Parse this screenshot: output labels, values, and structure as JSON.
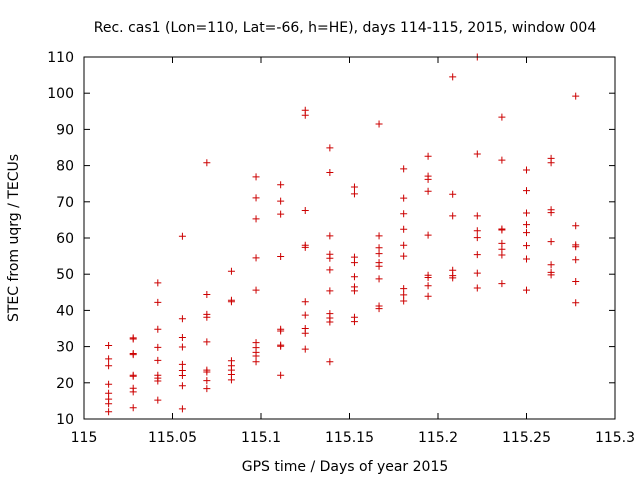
{
  "chart_data": {
    "type": "scatter",
    "title": "Rec. cas1 (Lon=110, Lat=-66, h=HE), days 114-115, 2015, window 004",
    "xlabel": "GPS time / Days of year 2015",
    "ylabel": "STEC from uqrg / TECUs",
    "xlim": [
      115,
      115.3
    ],
    "ylim": [
      10,
      110
    ],
    "xticks": [
      115,
      115.05,
      115.1,
      115.15,
      115.2,
      115.25,
      115.3
    ],
    "xtick_labels": [
      "115",
      "115.05",
      "115.1",
      "115.15",
      "115.2",
      "115.25",
      "115.3"
    ],
    "yticks": [
      10,
      20,
      30,
      40,
      50,
      60,
      70,
      80,
      90,
      100,
      110
    ],
    "ytick_labels": [
      "10",
      "20",
      "30",
      "40",
      "50",
      "60",
      "70",
      "80",
      "90",
      "100",
      "110"
    ],
    "grid": false,
    "legend": "none",
    "marker": "+",
    "color": "#cc0000",
    "points": [
      [
        115.0139,
        30.3
      ],
      [
        115.0139,
        26.6
      ],
      [
        115.0139,
        24.7
      ],
      [
        115.0139,
        19.6
      ],
      [
        115.0139,
        17.1
      ],
      [
        115.0139,
        15.5
      ],
      [
        115.0139,
        14.2
      ],
      [
        115.0139,
        12.0
      ],
      [
        115.0278,
        32.4
      ],
      [
        115.0278,
        32.1
      ],
      [
        115.0278,
        28.1
      ],
      [
        115.0278,
        27.8
      ],
      [
        115.0278,
        22.1
      ],
      [
        115.0278,
        21.8
      ],
      [
        115.0278,
        18.5
      ],
      [
        115.0278,
        17.5
      ],
      [
        115.0278,
        13.1
      ],
      [
        115.0417,
        47.6
      ],
      [
        115.0417,
        42.2
      ],
      [
        115.0417,
        34.8
      ],
      [
        115.0417,
        29.8
      ],
      [
        115.0417,
        26.2
      ],
      [
        115.0417,
        22.1
      ],
      [
        115.0417,
        21.3
      ],
      [
        115.0417,
        20.5
      ],
      [
        115.0417,
        15.2
      ],
      [
        115.0556,
        60.5
      ],
      [
        115.0556,
        37.7
      ],
      [
        115.0556,
        32.5
      ],
      [
        115.0556,
        29.9
      ],
      [
        115.0556,
        25.1
      ],
      [
        115.0556,
        23.4
      ],
      [
        115.0556,
        22.0
      ],
      [
        115.0556,
        19.2
      ],
      [
        115.0556,
        12.8
      ],
      [
        115.0694,
        80.8
      ],
      [
        115.0694,
        44.4
      ],
      [
        115.0694,
        38.9
      ],
      [
        115.0694,
        38.1
      ],
      [
        115.0694,
        31.3
      ],
      [
        115.0694,
        23.5
      ],
      [
        115.0694,
        23.0
      ],
      [
        115.0694,
        20.6
      ],
      [
        115.0694,
        18.4
      ],
      [
        115.0833,
        50.8
      ],
      [
        115.0833,
        42.8
      ],
      [
        115.0833,
        42.4
      ],
      [
        115.0833,
        26.1
      ],
      [
        115.0833,
        24.7
      ],
      [
        115.0833,
        23.5
      ],
      [
        115.0833,
        22.3
      ],
      [
        115.0833,
        20.8
      ],
      [
        115.0972,
        76.9
      ],
      [
        115.0972,
        71.1
      ],
      [
        115.0972,
        65.3
      ],
      [
        115.0972,
        54.5
      ],
      [
        115.0972,
        45.6
      ],
      [
        115.0972,
        31.1
      ],
      [
        115.0972,
        29.7
      ],
      [
        115.0972,
        28.4
      ],
      [
        115.0972,
        27.4
      ],
      [
        115.0972,
        25.8
      ],
      [
        115.1111,
        74.7
      ],
      [
        115.1111,
        70.2
      ],
      [
        115.1111,
        66.6
      ],
      [
        115.1111,
        54.9
      ],
      [
        115.1111,
        34.8
      ],
      [
        115.1111,
        34.3
      ],
      [
        115.1111,
        30.4
      ],
      [
        115.1111,
        30.1
      ],
      [
        115.1111,
        22.1
      ],
      [
        115.125,
        95.3
      ],
      [
        115.125,
        93.9
      ],
      [
        115.125,
        67.6
      ],
      [
        115.125,
        58.0
      ],
      [
        115.125,
        57.4
      ],
      [
        115.125,
        42.4
      ],
      [
        115.125,
        38.7
      ],
      [
        115.125,
        35.0
      ],
      [
        115.125,
        33.7
      ],
      [
        115.125,
        29.3
      ],
      [
        115.1389,
        84.9
      ],
      [
        115.1389,
        78.1
      ],
      [
        115.1389,
        60.6
      ],
      [
        115.1389,
        55.5
      ],
      [
        115.1389,
        54.4
      ],
      [
        115.1389,
        51.2
      ],
      [
        115.1389,
        45.4
      ],
      [
        115.1389,
        39.1
      ],
      [
        115.1389,
        37.9
      ],
      [
        115.1389,
        36.8
      ],
      [
        115.1389,
        25.8
      ],
      [
        115.1528,
        74.1
      ],
      [
        115.1528,
        72.2
      ],
      [
        115.1528,
        54.7
      ],
      [
        115.1528,
        53.2
      ],
      [
        115.1528,
        49.3
      ],
      [
        115.1528,
        46.5
      ],
      [
        115.1528,
        45.4
      ],
      [
        115.1528,
        38.1
      ],
      [
        115.1528,
        36.9
      ],
      [
        115.1667,
        91.5
      ],
      [
        115.1667,
        60.6
      ],
      [
        115.1667,
        57.3
      ],
      [
        115.1667,
        55.7
      ],
      [
        115.1667,
        53.2
      ],
      [
        115.1667,
        52.2
      ],
      [
        115.1667,
        48.7
      ],
      [
        115.1667,
        41.2
      ],
      [
        115.1667,
        40.5
      ],
      [
        115.1806,
        79.1
      ],
      [
        115.1806,
        71.0
      ],
      [
        115.1806,
        66.7
      ],
      [
        115.1806,
        62.4
      ],
      [
        115.1806,
        58.0
      ],
      [
        115.1806,
        55.0
      ],
      [
        115.1806,
        46.0
      ],
      [
        115.1806,
        44.3
      ],
      [
        115.1806,
        42.6
      ],
      [
        115.1944,
        82.6
      ],
      [
        115.1944,
        77.1
      ],
      [
        115.1944,
        76.2
      ],
      [
        115.1944,
        72.9
      ],
      [
        115.1944,
        60.8
      ],
      [
        115.1944,
        49.7
      ],
      [
        115.1944,
        49.1
      ],
      [
        115.1944,
        46.8
      ],
      [
        115.1944,
        43.9
      ],
      [
        115.2083,
        104.5
      ],
      [
        115.2083,
        72.1
      ],
      [
        115.2083,
        66.1
      ],
      [
        115.2083,
        51.1
      ],
      [
        115.2083,
        49.6
      ],
      [
        115.2083,
        49.0
      ],
      [
        115.2222,
        110.0
      ],
      [
        115.2222,
        83.2
      ],
      [
        115.2222,
        66.1
      ],
      [
        115.2222,
        62.0
      ],
      [
        115.2222,
        60.1
      ],
      [
        115.2222,
        55.4
      ],
      [
        115.2222,
        50.3
      ],
      [
        115.2222,
        46.2
      ],
      [
        115.2361,
        93.4
      ],
      [
        115.2361,
        81.5
      ],
      [
        115.2361,
        62.5
      ],
      [
        115.2361,
        62.2
      ],
      [
        115.2361,
        58.5
      ],
      [
        115.2361,
        56.9
      ],
      [
        115.2361,
        55.3
      ],
      [
        115.2361,
        47.4
      ],
      [
        115.25,
        78.8
      ],
      [
        115.25,
        73.1
      ],
      [
        115.25,
        66.9
      ],
      [
        115.25,
        63.7
      ],
      [
        115.25,
        61.5
      ],
      [
        115.25,
        57.9
      ],
      [
        115.25,
        54.2
      ],
      [
        115.25,
        45.6
      ],
      [
        115.2639,
        82.0
      ],
      [
        115.2639,
        80.8
      ],
      [
        115.2639,
        67.8
      ],
      [
        115.2639,
        67.0
      ],
      [
        115.2639,
        59.0
      ],
      [
        115.2639,
        52.6
      ],
      [
        115.2639,
        50.5
      ],
      [
        115.2639,
        49.8
      ],
      [
        115.2778,
        99.2
      ],
      [
        115.2778,
        63.4
      ],
      [
        115.2778,
        58.1
      ],
      [
        115.2778,
        57.6
      ],
      [
        115.2778,
        54.0
      ],
      [
        115.2778,
        48.0
      ],
      [
        115.2778,
        42.1
      ]
    ]
  }
}
